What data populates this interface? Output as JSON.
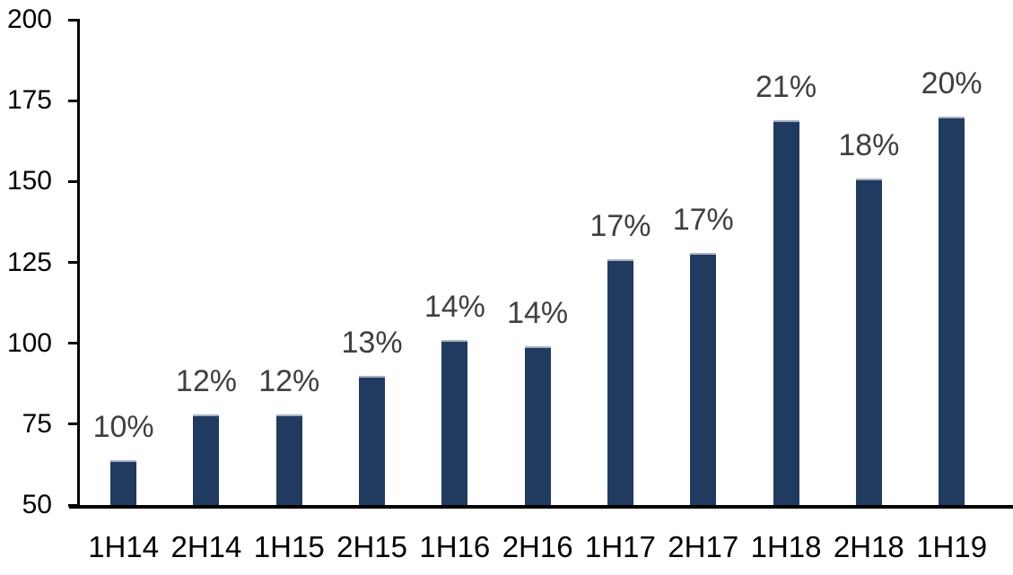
{
  "chart_data": {
    "type": "bar",
    "categories": [
      "1H14",
      "2H14",
      "1H15",
      "2H15",
      "1H16",
      "2H16",
      "1H17",
      "2H17",
      "1H18",
      "2H18",
      "1H19"
    ],
    "values": [
      64,
      78,
      78,
      90,
      101,
      99,
      126,
      128,
      169,
      151,
      170
    ],
    "bar_labels": [
      "10%",
      "12%",
      "12%",
      "13%",
      "14%",
      "14%",
      "17%",
      "17%",
      "21%",
      "18%",
      "20%"
    ],
    "title": "",
    "xlabel": "",
    "ylabel": "",
    "ylim": [
      50,
      200
    ],
    "yticks": [
      50,
      75,
      100,
      125,
      150,
      175,
      200
    ],
    "grid": false,
    "legend": false,
    "bar_color": "#213a60",
    "bar_border_color": "#a7b1c2",
    "data_label_color": "#3f3f3f",
    "axis_text_color": "#000000",
    "axis_line_color": "#000000",
    "background_color": "#ffffff"
  }
}
